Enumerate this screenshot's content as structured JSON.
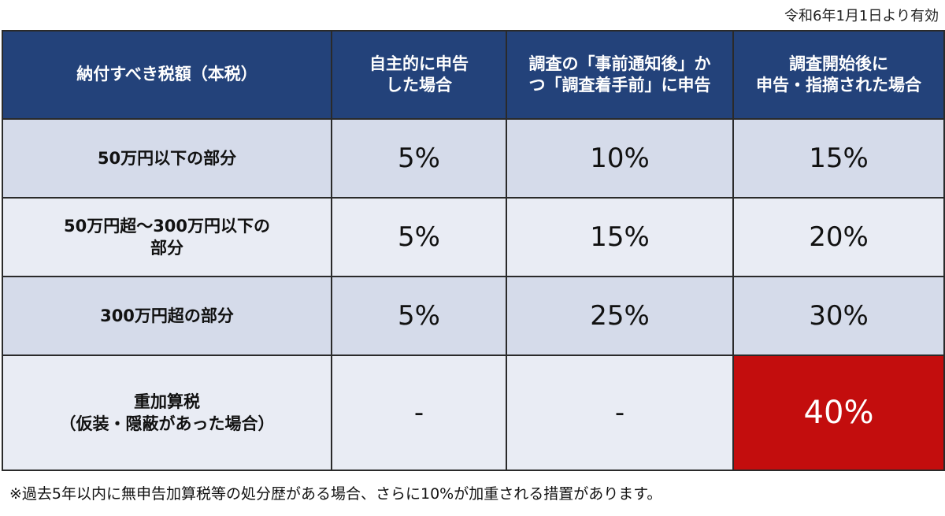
{
  "effective_date": "令和6年1月1日より有効",
  "headers": {
    "col1": [
      "納付すべき税額（本税）"
    ],
    "col2": [
      "自主的に申告",
      "した場合"
    ],
    "col3": [
      "調査の「事前通知後」か",
      "つ「調査着手前」に申告"
    ],
    "col4": [
      "調査開始後に",
      "申告・指摘された場合"
    ]
  },
  "rows": [
    {
      "label": [
        "50万円以下の部分"
      ],
      "v1": "5%",
      "v2": "10%",
      "v3": "15%"
    },
    {
      "label": [
        "50万円超〜300万円以下の",
        "部分"
      ],
      "v1": "5%",
      "v2": "15%",
      "v3": "20%"
    },
    {
      "label": [
        "300万円超の部分"
      ],
      "v1": "5%",
      "v2": "25%",
      "v3": "30%"
    },
    {
      "label": [
        "重加算税",
        "（仮装・隠蔽があった場合）"
      ],
      "v1": "-",
      "v2": "-",
      "v3": "40%"
    }
  ],
  "note": "※過去5年以内に無申告加算税等の処分歴がある場合、さらに10%が加重される措置があります。",
  "colors": {
    "header_bg": "#23427a",
    "row_shaded": "#d5dbea",
    "row_light": "#e9ecf4",
    "highlight": "#c30d0d"
  }
}
